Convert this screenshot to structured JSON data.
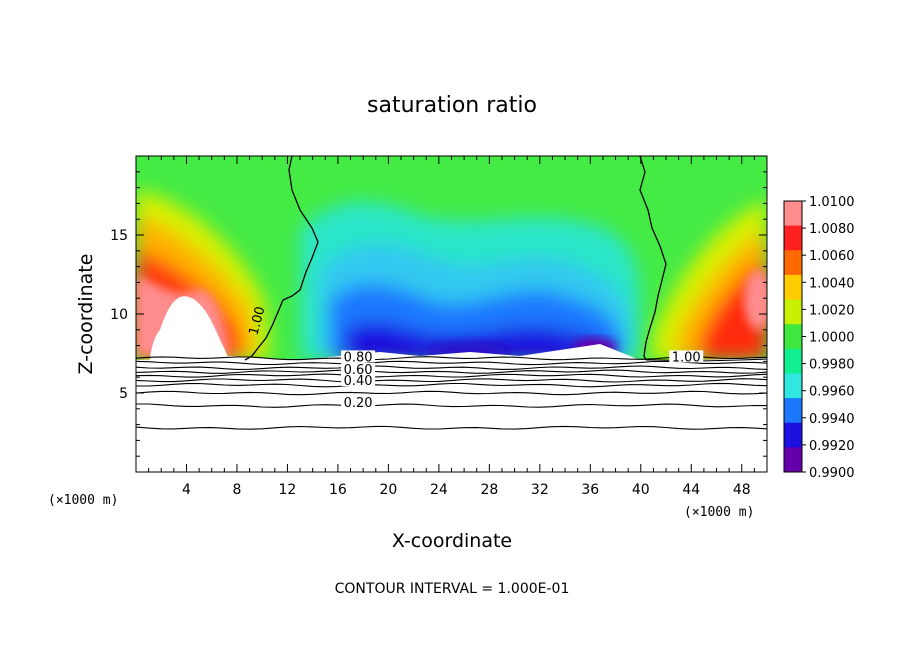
{
  "chart_data": {
    "type": "heatmap",
    "title": "saturation ratio",
    "xlabel": "X-coordinate",
    "ylabel": "Z-coordinate",
    "x_unit_left": "(×1000 m)",
    "x_unit_right": "(×1000 m)",
    "xlim": [
      0,
      50
    ],
    "ylim": [
      0,
      20
    ],
    "x_ticks": [
      4,
      8,
      12,
      16,
      20,
      24,
      28,
      32,
      36,
      40,
      44,
      48
    ],
    "y_ticks": [
      5,
      10,
      15
    ],
    "footnote": "CONTOUR INTERVAL = 1.000E-01",
    "colorbar": {
      "labels": [
        "1.0100",
        "1.0080",
        "1.0060",
        "1.0040",
        "1.0020",
        "1.0000",
        "0.9980",
        "0.9960",
        "0.9940",
        "0.9920",
        "0.9900"
      ],
      "colors": [
        "#ff8d8d",
        "#ff2020",
        "#ff6a00",
        "#ffcc00",
        "#c8f000",
        "#3ee63e",
        "#10f090",
        "#30e8e0",
        "#1c78ff",
        "#1a10e0",
        "#6600aa"
      ]
    },
    "contour_labels": [
      {
        "text": "1.00",
        "x": 9.9,
        "z": 9.5,
        "rotate": -75
      },
      {
        "text": "1.00",
        "x": 43.6,
        "z": 7.0,
        "rotate": 0
      },
      {
        "text": "0.80",
        "x": 17.6,
        "z": 7.0,
        "rotate": 0
      },
      {
        "text": "0.60",
        "x": 17.6,
        "z": 6.2,
        "rotate": 0
      },
      {
        "text": "0.40",
        "x": 17.6,
        "z": 5.5,
        "rotate": 0
      },
      {
        "text": "0.20",
        "x": 17.6,
        "z": 4.1,
        "rotate": 0
      }
    ],
    "lower_contours": [
      7.2,
      6.9,
      6.6,
      6.35,
      6.1,
      5.8,
      5.5,
      5.0,
      4.2,
      2.8
    ],
    "saturation_zero_line_z": 7.2,
    "field_sketch": {
      "left_region": {
        "peak": 1.008,
        "x_range": [
          0,
          10
        ]
      },
      "center_region": {
        "min": 0.991,
        "x_range": [
          15,
          40
        ]
      },
      "right_region": {
        "peak": 1.008,
        "x_range": [
          40,
          50
        ]
      },
      "background": 1.0005
    }
  }
}
